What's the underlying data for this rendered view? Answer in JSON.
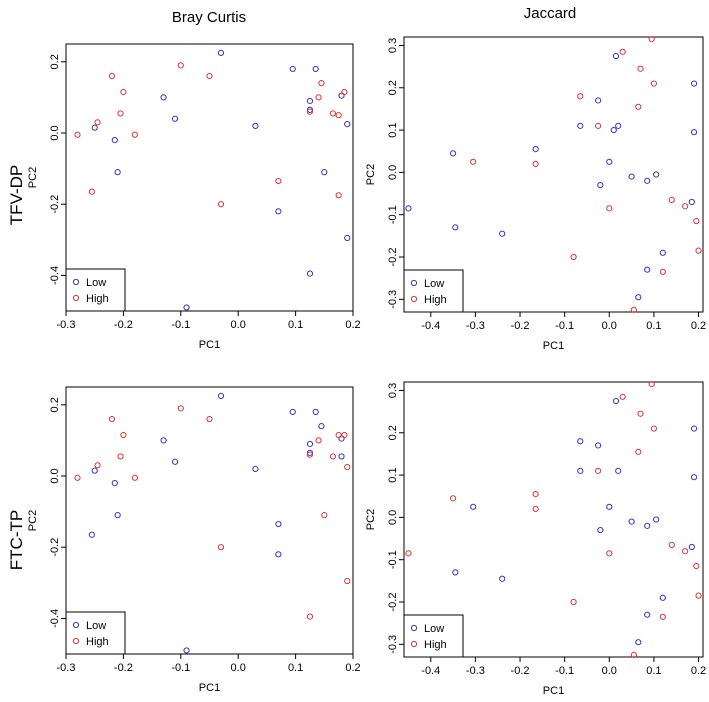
{
  "row_titles": [
    "TFV-DP",
    "FTC-TP"
  ],
  "col_titles": [
    "Bray Curtis",
    "Jaccard"
  ],
  "colors": {
    "low": "#3333cc",
    "high": "#dd3333"
  },
  "chart_data": [
    {
      "type": "scatter",
      "title": "Bray Curtis",
      "row": "TFV-DP",
      "xlabel": "PC1",
      "ylabel": "PC2",
      "xlim": [
        -0.3,
        0.2
      ],
      "ylim": [
        -0.5,
        0.25
      ],
      "xticks": [
        "-0.3",
        "-0.2",
        "-0.1",
        "0.0",
        "0.1",
        "0.2"
      ],
      "yticks": [
        "-0.4",
        "-0.2",
        "0.0",
        "0.2"
      ],
      "legend": [
        "Low",
        "High"
      ],
      "legend_position": "bottom-left",
      "series": [
        {
          "name": "Low",
          "points": [
            [
              -0.25,
              0.015
            ],
            [
              -0.215,
              -0.02
            ],
            [
              -0.21,
              -0.11
            ],
            [
              -0.13,
              0.1
            ],
            [
              -0.11,
              0.04
            ],
            [
              -0.03,
              0.225
            ],
            [
              0.03,
              0.02
            ],
            [
              0.07,
              -0.22
            ],
            [
              0.095,
              0.18
            ],
            [
              0.125,
              0.09
            ],
            [
              0.125,
              0.065
            ],
            [
              0.125,
              -0.395
            ],
            [
              0.135,
              0.18
            ],
            [
              0.15,
              -0.11
            ],
            [
              0.18,
              0.105
            ],
            [
              0.19,
              0.025
            ],
            [
              0.19,
              -0.295
            ],
            [
              -0.09,
              -0.49
            ]
          ]
        },
        {
          "name": "High",
          "points": [
            [
              -0.28,
              -0.005
            ],
            [
              -0.255,
              -0.165
            ],
            [
              -0.245,
              0.03
            ],
            [
              -0.22,
              0.16
            ],
            [
              -0.205,
              0.055
            ],
            [
              -0.2,
              0.115
            ],
            [
              -0.18,
              -0.005
            ],
            [
              -0.1,
              0.19
            ],
            [
              -0.05,
              0.16
            ],
            [
              -0.03,
              -0.2
            ],
            [
              0.07,
              -0.135
            ],
            [
              0.125,
              0.06
            ],
            [
              0.14,
              0.1
            ],
            [
              0.145,
              0.14
            ],
            [
              0.165,
              0.055
            ],
            [
              0.175,
              -0.175
            ],
            [
              0.175,
              0.05
            ],
            [
              0.185,
              0.115
            ]
          ]
        }
      ]
    },
    {
      "type": "scatter",
      "title": "Jaccard",
      "row": "TFV-DP",
      "xlabel": "PC1",
      "ylabel": "PC2",
      "xlim": [
        -0.46,
        0.21
      ],
      "ylim": [
        -0.33,
        0.32
      ],
      "xticks": [
        "-0.4",
        "-0.3",
        "-0.2",
        "-0.1",
        "0.0",
        "0.1",
        "0.2"
      ],
      "yticks": [
        "-0.3",
        "-0.2",
        "-0.1",
        "0.0",
        "0.1",
        "0.2",
        "0.3"
      ],
      "legend": [
        "Low",
        "High"
      ],
      "legend_position": "bottom-left",
      "series": [
        {
          "name": "Low",
          "points": [
            [
              -0.45,
              -0.085
            ],
            [
              -0.35,
              0.045
            ],
            [
              -0.345,
              -0.13
            ],
            [
              -0.24,
              -0.145
            ],
            [
              -0.165,
              0.055
            ],
            [
              -0.065,
              0.11
            ],
            [
              -0.025,
              0.17
            ],
            [
              -0.02,
              -0.03
            ],
            [
              0.0,
              0.025
            ],
            [
              0.01,
              0.1
            ],
            [
              0.015,
              0.275
            ],
            [
              0.02,
              0.11
            ],
            [
              0.05,
              -0.01
            ],
            [
              0.065,
              -0.295
            ],
            [
              0.085,
              -0.02
            ],
            [
              0.085,
              -0.23
            ],
            [
              0.105,
              -0.005
            ],
            [
              0.12,
              -0.19
            ],
            [
              0.185,
              -0.07
            ],
            [
              0.19,
              0.21
            ],
            [
              0.19,
              0.095
            ]
          ]
        },
        {
          "name": "High",
          "points": [
            [
              -0.305,
              0.025
            ],
            [
              -0.165,
              0.02
            ],
            [
              -0.08,
              -0.2
            ],
            [
              -0.065,
              0.18
            ],
            [
              -0.025,
              0.11
            ],
            [
              0.0,
              -0.085
            ],
            [
              0.03,
              0.285
            ],
            [
              0.055,
              -0.325
            ],
            [
              0.065,
              0.155
            ],
            [
              0.07,
              0.245
            ],
            [
              0.095,
              0.315
            ],
            [
              0.1,
              0.21
            ],
            [
              0.12,
              -0.235
            ],
            [
              0.14,
              -0.065
            ],
            [
              0.17,
              -0.08
            ],
            [
              0.195,
              -0.115
            ],
            [
              0.2,
              -0.185
            ]
          ]
        }
      ]
    },
    {
      "type": "scatter",
      "title": "Bray Curtis",
      "row": "FTC-TP",
      "xlabel": "PC1",
      "ylabel": "PC2",
      "xlim": [
        -0.3,
        0.2
      ],
      "ylim": [
        -0.5,
        0.25
      ],
      "xticks": [
        "-0.3",
        "-0.2",
        "-0.1",
        "0.0",
        "0.1",
        "0.2"
      ],
      "yticks": [
        "-0.4",
        "-0.2",
        "0.0",
        "0.2"
      ],
      "legend": [
        "Low",
        "High"
      ],
      "legend_position": "bottom-left",
      "series": [
        {
          "name": "Low",
          "points": [
            [
              -0.25,
              0.015
            ],
            [
              -0.215,
              -0.02
            ],
            [
              -0.21,
              -0.11
            ],
            [
              -0.255,
              -0.165
            ],
            [
              -0.13,
              0.1
            ],
            [
              -0.11,
              0.04
            ],
            [
              -0.03,
              0.225
            ],
            [
              0.03,
              0.02
            ],
            [
              0.07,
              -0.135
            ],
            [
              0.07,
              -0.22
            ],
            [
              0.095,
              0.18
            ],
            [
              0.125,
              0.09
            ],
            [
              0.125,
              0.065
            ],
            [
              0.135,
              0.18
            ],
            [
              0.145,
              0.14
            ],
            [
              0.18,
              0.055
            ],
            [
              0.18,
              0.105
            ],
            [
              -0.09,
              -0.49
            ]
          ]
        },
        {
          "name": "High",
          "points": [
            [
              -0.28,
              -0.005
            ],
            [
              -0.245,
              0.03
            ],
            [
              -0.22,
              0.16
            ],
            [
              -0.205,
              0.055
            ],
            [
              -0.2,
              0.115
            ],
            [
              -0.18,
              -0.005
            ],
            [
              -0.1,
              0.19
            ],
            [
              -0.05,
              0.16
            ],
            [
              -0.03,
              -0.2
            ],
            [
              0.125,
              0.06
            ],
            [
              0.125,
              -0.395
            ],
            [
              0.14,
              0.1
            ],
            [
              0.15,
              -0.11
            ],
            [
              0.165,
              0.055
            ],
            [
              0.175,
              0.115
            ],
            [
              0.185,
              0.115
            ],
            [
              0.19,
              0.025
            ],
            [
              0.19,
              -0.295
            ]
          ]
        }
      ]
    },
    {
      "type": "scatter",
      "title": "Jaccard",
      "row": "FTC-TP",
      "xlabel": "PC1",
      "ylabel": "PC2",
      "xlim": [
        -0.46,
        0.21
      ],
      "ylim": [
        -0.33,
        0.32
      ],
      "xticks": [
        "-0.4",
        "-0.3",
        "-0.2",
        "-0.1",
        "0.0",
        "0.1",
        "0.2"
      ],
      "yticks": [
        "-0.3",
        "-0.2",
        "-0.1",
        "0.0",
        "0.1",
        "0.2",
        "0.3"
      ],
      "legend": [
        "Low",
        "High"
      ],
      "legend_position": "bottom-left",
      "series": [
        {
          "name": "Low",
          "points": [
            [
              -0.345,
              -0.13
            ],
            [
              -0.305,
              0.025
            ],
            [
              -0.24,
              -0.145
            ],
            [
              -0.065,
              0.18
            ],
            [
              -0.065,
              0.11
            ],
            [
              -0.025,
              0.17
            ],
            [
              -0.02,
              -0.03
            ],
            [
              0.0,
              0.025
            ],
            [
              0.015,
              0.275
            ],
            [
              0.02,
              0.11
            ],
            [
              0.05,
              -0.01
            ],
            [
              0.065,
              -0.295
            ],
            [
              0.085,
              -0.02
            ],
            [
              0.085,
              -0.23
            ],
            [
              0.105,
              -0.005
            ],
            [
              0.12,
              -0.19
            ],
            [
              0.185,
              -0.07
            ],
            [
              0.19,
              0.21
            ],
            [
              0.19,
              0.095
            ]
          ]
        },
        {
          "name": "High",
          "points": [
            [
              -0.45,
              -0.085
            ],
            [
              -0.35,
              0.045
            ],
            [
              -0.165,
              0.055
            ],
            [
              -0.165,
              0.02
            ],
            [
              -0.08,
              -0.2
            ],
            [
              -0.025,
              0.11
            ],
            [
              0.0,
              -0.085
            ],
            [
              0.03,
              0.285
            ],
            [
              0.055,
              -0.325
            ],
            [
              0.065,
              0.155
            ],
            [
              0.07,
              0.245
            ],
            [
              0.095,
              0.315
            ],
            [
              0.1,
              0.21
            ],
            [
              0.12,
              -0.235
            ],
            [
              0.14,
              -0.065
            ],
            [
              0.17,
              -0.08
            ],
            [
              0.195,
              -0.115
            ],
            [
              0.2,
              -0.185
            ]
          ]
        }
      ]
    }
  ]
}
